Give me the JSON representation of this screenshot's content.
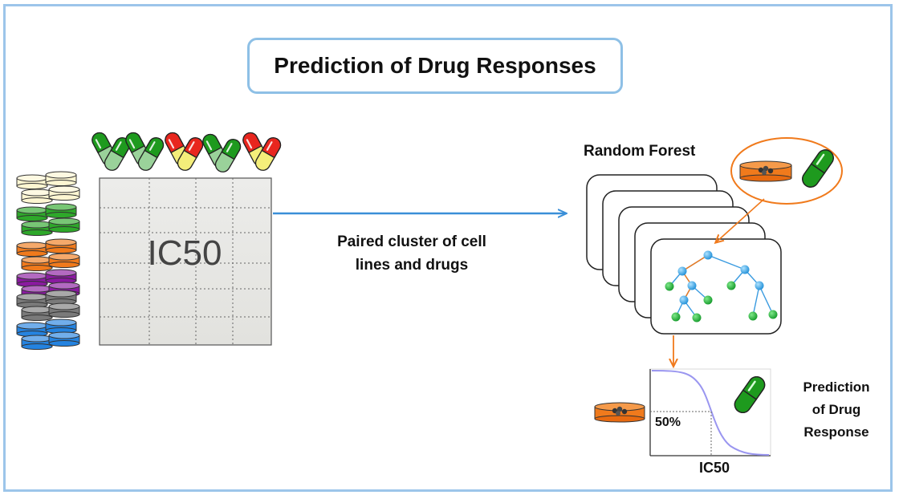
{
  "title": "Prediction of Drug Responses",
  "matrix_label": "IC50",
  "arrow_label": [
    "Paired cluster of cell",
    "lines and drugs"
  ],
  "random_forest_label": "Random Forest",
  "curve_threshold_label": "50%",
  "curve_axis_label": "IC50",
  "prediction_label": [
    "Prediction",
    "of Drug",
    "Response"
  ],
  "drug_colors": [
    "#1e9a1e",
    "#1e9a1e",
    "#e8261e",
    "#1e9a1e",
    "#e8261e"
  ],
  "cell_line_colors": [
    "#fdf6d2",
    "#2ea82a",
    "#f07a1c",
    "#8a1aa0",
    "#7a7a7a",
    "#2483e0"
  ],
  "colors": {
    "frame": "#9cc5ea",
    "arrow": "#3a8fd8",
    "orange": "#f07a1c",
    "tree_node": "#2aa0e8",
    "leaf_node": "#1bb33a",
    "curve": "#9a96f0"
  }
}
